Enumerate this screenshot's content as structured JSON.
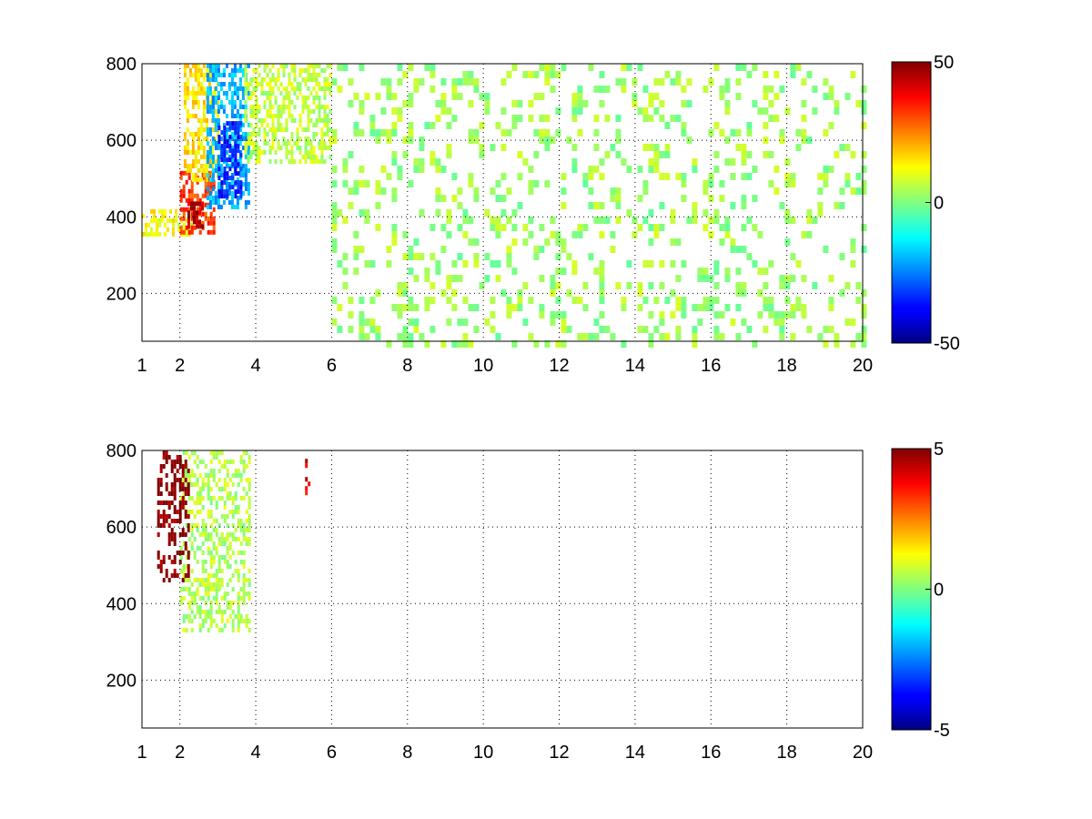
{
  "chart_data": [
    {
      "type": "heatmap",
      "title": "",
      "xlabel": "",
      "ylabel": "",
      "xlim": [
        1,
        20
      ],
      "ylim": [
        75,
        800
      ],
      "x_ticks": [
        "1",
        "2",
        "4",
        "6",
        "8",
        "10",
        "12",
        "14",
        "16",
        "18",
        "20"
      ],
      "x_tick_values": [
        1,
        2,
        4,
        6,
        8,
        10,
        12,
        14,
        16,
        18,
        20
      ],
      "y_ticks": [
        "200",
        "400",
        "600",
        "800"
      ],
      "y_tick_values": [
        200,
        400,
        600,
        800
      ],
      "grid": true,
      "colormap": "jet",
      "clim": [
        -50,
        50
      ],
      "colorbar_ticks": [
        "50",
        "0",
        "-50"
      ],
      "colorbar_tick_values": [
        50,
        0,
        -50
      ],
      "patterns": [
        {
          "x": [
            1,
            2.3
          ],
          "y": [
            350,
            420
          ],
          "value": 12
        },
        {
          "x": [
            2.0,
            2.9
          ],
          "y": [
            360,
            520
          ],
          "value": 32
        },
        {
          "x": [
            2.2,
            2.6
          ],
          "y": [
            380,
            440
          ],
          "value": 45
        },
        {
          "x": [
            2.1,
            3.0
          ],
          "y": [
            500,
            800
          ],
          "value": 15
        },
        {
          "x": [
            2.7,
            3.8
          ],
          "y": [
            430,
            800
          ],
          "value": -20
        },
        {
          "x": [
            3.0,
            3.6
          ],
          "y": [
            450,
            650
          ],
          "value": -35
        },
        {
          "x": [
            3.7,
            6.0
          ],
          "y": [
            550,
            800
          ],
          "value": 6
        },
        {
          "x": [
            6,
            20
          ],
          "y": [
            75,
            800
          ],
          "value": 3
        }
      ]
    },
    {
      "type": "heatmap",
      "title": "",
      "xlabel": "",
      "ylabel": "",
      "xlim": [
        1,
        20
      ],
      "ylim": [
        75,
        800
      ],
      "x_ticks": [
        "1",
        "2",
        "4",
        "6",
        "8",
        "10",
        "12",
        "14",
        "16",
        "18",
        "20"
      ],
      "x_tick_values": [
        1,
        2,
        4,
        6,
        8,
        10,
        12,
        14,
        16,
        18,
        20
      ],
      "y_ticks": [
        "200",
        "400",
        "600",
        "800"
      ],
      "y_tick_values": [
        200,
        400,
        600,
        800
      ],
      "grid": true,
      "colormap": "jet",
      "clim": [
        -5,
        5
      ],
      "colorbar_ticks": [
        "5",
        "0",
        "-5"
      ],
      "colorbar_tick_values": [
        5,
        0,
        -5
      ],
      "patterns": [
        {
          "x": [
            2.0,
            3.8
          ],
          "y": [
            330,
            800
          ],
          "value": 0.5
        },
        {
          "x": [
            1.4,
            2.2
          ],
          "y": [
            460,
            800
          ],
          "value": 5
        },
        {
          "x": [
            5.3,
            5.4
          ],
          "y": [
            680,
            790
          ],
          "value": 4
        }
      ]
    }
  ]
}
